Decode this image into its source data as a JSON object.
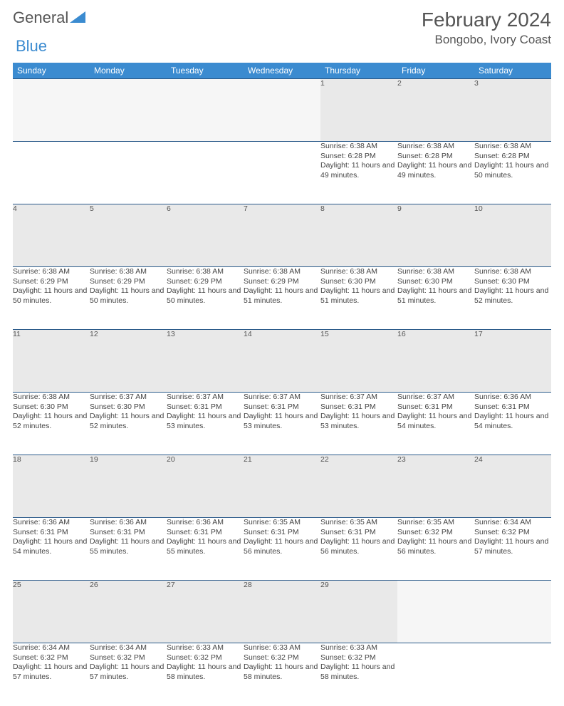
{
  "logo": {
    "word1": "General",
    "word2": "Blue"
  },
  "header": {
    "month_title": "February 2024",
    "location": "Bongobo, Ivory Coast"
  },
  "colors": {
    "header_bg": "#3b8bd0",
    "header_text": "#ffffff",
    "daynum_bg": "#e9e9e9",
    "rule": "#2a5a8a",
    "logo_blue": "#3b8bd0",
    "text_gray": "#555555"
  },
  "weekdays": [
    "Sunday",
    "Monday",
    "Tuesday",
    "Wednesday",
    "Thursday",
    "Friday",
    "Saturday"
  ],
  "weeks": [
    {
      "days": [
        {
          "n": "",
          "sunrise": "",
          "sunset": "",
          "daylight": ""
        },
        {
          "n": "",
          "sunrise": "",
          "sunset": "",
          "daylight": ""
        },
        {
          "n": "",
          "sunrise": "",
          "sunset": "",
          "daylight": ""
        },
        {
          "n": "",
          "sunrise": "",
          "sunset": "",
          "daylight": ""
        },
        {
          "n": "1",
          "sunrise": "Sunrise: 6:38 AM",
          "sunset": "Sunset: 6:28 PM",
          "daylight": "Daylight: 11 hours and 49 minutes."
        },
        {
          "n": "2",
          "sunrise": "Sunrise: 6:38 AM",
          "sunset": "Sunset: 6:28 PM",
          "daylight": "Daylight: 11 hours and 49 minutes."
        },
        {
          "n": "3",
          "sunrise": "Sunrise: 6:38 AM",
          "sunset": "Sunset: 6:28 PM",
          "daylight": "Daylight: 11 hours and 50 minutes."
        }
      ]
    },
    {
      "days": [
        {
          "n": "4",
          "sunrise": "Sunrise: 6:38 AM",
          "sunset": "Sunset: 6:29 PM",
          "daylight": "Daylight: 11 hours and 50 minutes."
        },
        {
          "n": "5",
          "sunrise": "Sunrise: 6:38 AM",
          "sunset": "Sunset: 6:29 PM",
          "daylight": "Daylight: 11 hours and 50 minutes."
        },
        {
          "n": "6",
          "sunrise": "Sunrise: 6:38 AM",
          "sunset": "Sunset: 6:29 PM",
          "daylight": "Daylight: 11 hours and 50 minutes."
        },
        {
          "n": "7",
          "sunrise": "Sunrise: 6:38 AM",
          "sunset": "Sunset: 6:29 PM",
          "daylight": "Daylight: 11 hours and 51 minutes."
        },
        {
          "n": "8",
          "sunrise": "Sunrise: 6:38 AM",
          "sunset": "Sunset: 6:30 PM",
          "daylight": "Daylight: 11 hours and 51 minutes."
        },
        {
          "n": "9",
          "sunrise": "Sunrise: 6:38 AM",
          "sunset": "Sunset: 6:30 PM",
          "daylight": "Daylight: 11 hours and 51 minutes."
        },
        {
          "n": "10",
          "sunrise": "Sunrise: 6:38 AM",
          "sunset": "Sunset: 6:30 PM",
          "daylight": "Daylight: 11 hours and 52 minutes."
        }
      ]
    },
    {
      "days": [
        {
          "n": "11",
          "sunrise": "Sunrise: 6:38 AM",
          "sunset": "Sunset: 6:30 PM",
          "daylight": "Daylight: 11 hours and 52 minutes."
        },
        {
          "n": "12",
          "sunrise": "Sunrise: 6:37 AM",
          "sunset": "Sunset: 6:30 PM",
          "daylight": "Daylight: 11 hours and 52 minutes."
        },
        {
          "n": "13",
          "sunrise": "Sunrise: 6:37 AM",
          "sunset": "Sunset: 6:31 PM",
          "daylight": "Daylight: 11 hours and 53 minutes."
        },
        {
          "n": "14",
          "sunrise": "Sunrise: 6:37 AM",
          "sunset": "Sunset: 6:31 PM",
          "daylight": "Daylight: 11 hours and 53 minutes."
        },
        {
          "n": "15",
          "sunrise": "Sunrise: 6:37 AM",
          "sunset": "Sunset: 6:31 PM",
          "daylight": "Daylight: 11 hours and 53 minutes."
        },
        {
          "n": "16",
          "sunrise": "Sunrise: 6:37 AM",
          "sunset": "Sunset: 6:31 PM",
          "daylight": "Daylight: 11 hours and 54 minutes."
        },
        {
          "n": "17",
          "sunrise": "Sunrise: 6:36 AM",
          "sunset": "Sunset: 6:31 PM",
          "daylight": "Daylight: 11 hours and 54 minutes."
        }
      ]
    },
    {
      "days": [
        {
          "n": "18",
          "sunrise": "Sunrise: 6:36 AM",
          "sunset": "Sunset: 6:31 PM",
          "daylight": "Daylight: 11 hours and 54 minutes."
        },
        {
          "n": "19",
          "sunrise": "Sunrise: 6:36 AM",
          "sunset": "Sunset: 6:31 PM",
          "daylight": "Daylight: 11 hours and 55 minutes."
        },
        {
          "n": "20",
          "sunrise": "Sunrise: 6:36 AM",
          "sunset": "Sunset: 6:31 PM",
          "daylight": "Daylight: 11 hours and 55 minutes."
        },
        {
          "n": "21",
          "sunrise": "Sunrise: 6:35 AM",
          "sunset": "Sunset: 6:31 PM",
          "daylight": "Daylight: 11 hours and 56 minutes."
        },
        {
          "n": "22",
          "sunrise": "Sunrise: 6:35 AM",
          "sunset": "Sunset: 6:31 PM",
          "daylight": "Daylight: 11 hours and 56 minutes."
        },
        {
          "n": "23",
          "sunrise": "Sunrise: 6:35 AM",
          "sunset": "Sunset: 6:32 PM",
          "daylight": "Daylight: 11 hours and 56 minutes."
        },
        {
          "n": "24",
          "sunrise": "Sunrise: 6:34 AM",
          "sunset": "Sunset: 6:32 PM",
          "daylight": "Daylight: 11 hours and 57 minutes."
        }
      ]
    },
    {
      "days": [
        {
          "n": "25",
          "sunrise": "Sunrise: 6:34 AM",
          "sunset": "Sunset: 6:32 PM",
          "daylight": "Daylight: 11 hours and 57 minutes."
        },
        {
          "n": "26",
          "sunrise": "Sunrise: 6:34 AM",
          "sunset": "Sunset: 6:32 PM",
          "daylight": "Daylight: 11 hours and 57 minutes."
        },
        {
          "n": "27",
          "sunrise": "Sunrise: 6:33 AM",
          "sunset": "Sunset: 6:32 PM",
          "daylight": "Daylight: 11 hours and 58 minutes."
        },
        {
          "n": "28",
          "sunrise": "Sunrise: 6:33 AM",
          "sunset": "Sunset: 6:32 PM",
          "daylight": "Daylight: 11 hours and 58 minutes."
        },
        {
          "n": "29",
          "sunrise": "Sunrise: 6:33 AM",
          "sunset": "Sunset: 6:32 PM",
          "daylight": "Daylight: 11 hours and 58 minutes."
        },
        {
          "n": "",
          "sunrise": "",
          "sunset": "",
          "daylight": ""
        },
        {
          "n": "",
          "sunrise": "",
          "sunset": "",
          "daylight": ""
        }
      ]
    }
  ]
}
